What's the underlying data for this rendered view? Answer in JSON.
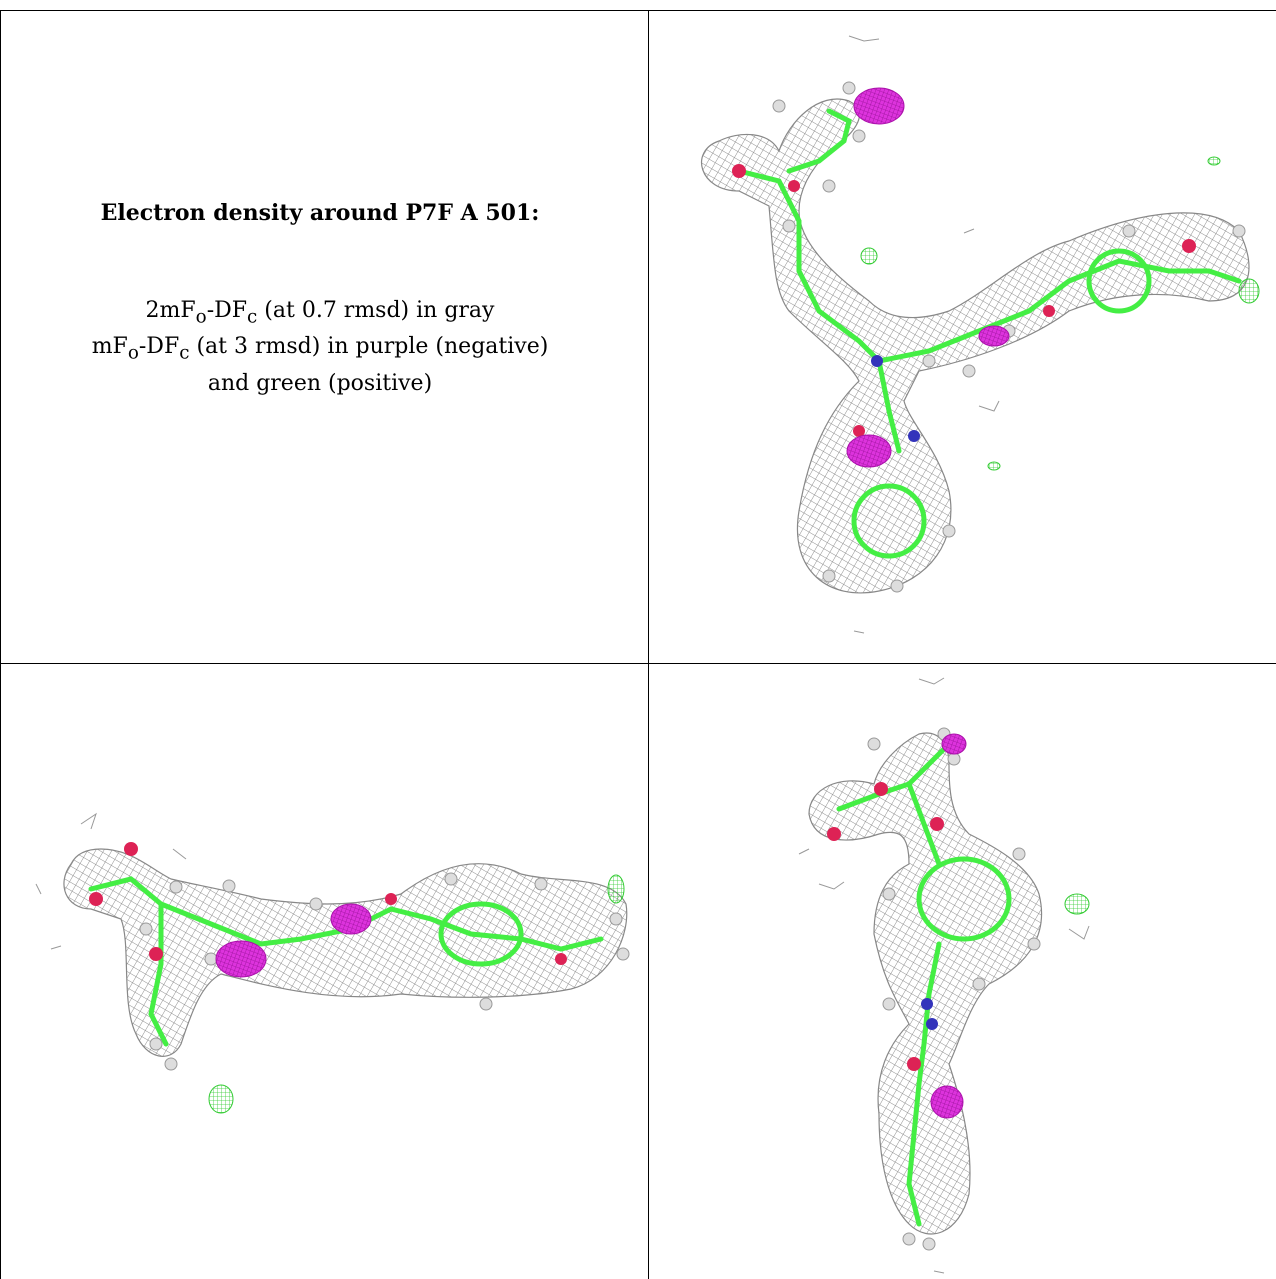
{
  "caption": {
    "title": "Electron density around P7F A 501:",
    "line1_a": "2mF",
    "line1_sub1": "o",
    "line1_b": "-DF",
    "line1_sub2": "c",
    "line1_c": " (at 0.7 rmsd) in gray",
    "line2_a": "mF",
    "line2_sub1": "o",
    "line2_b": "-DF",
    "line2_sub2": "c",
    "line2_c": " (at 3 rmsd) in purple (negative)",
    "line3": "and green (positive)"
  },
  "colors": {
    "mesh_2fofc": "#9a9a9a",
    "fofc_negative": "#cc11cc",
    "fofc_positive": "#33dd33",
    "carbon": "#44ee44",
    "oxygen": "#dd2255",
    "nitrogen": "#3333bb",
    "hydrogen": "#dddddd"
  },
  "panels": [
    {
      "name": "view-1",
      "ligand": "P7F A 501"
    },
    {
      "name": "view-2",
      "ligand": "P7F A 501"
    },
    {
      "name": "view-3",
      "ligand": "P7F A 501"
    }
  ]
}
